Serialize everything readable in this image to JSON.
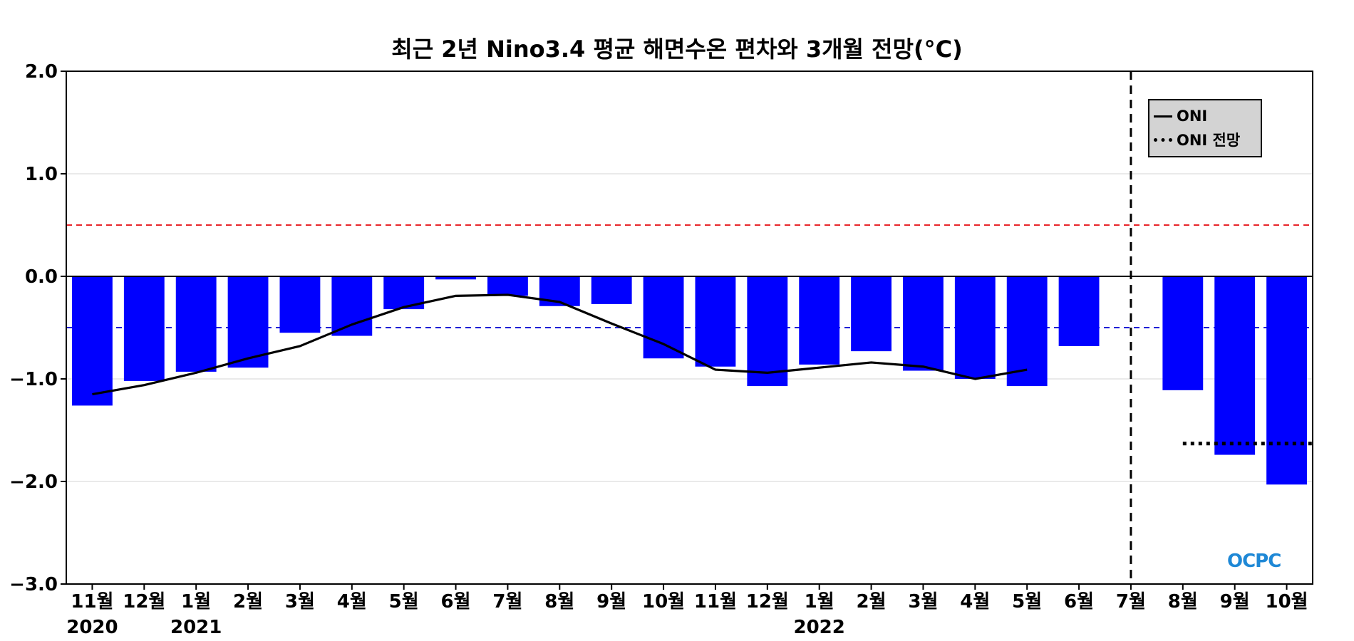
{
  "chart_data": {
    "type": "bar",
    "title": "최근 2년 Nino3.4 평균 해면수온 편차와 3개월 전망(°C)",
    "categories": [
      "11월",
      "12월",
      "1월",
      "2월",
      "3월",
      "4월",
      "5월",
      "6월",
      "7월",
      "8월",
      "9월",
      "10월",
      "11월",
      "12월",
      "1월",
      "2월",
      "3월",
      "4월",
      "5월",
      "6월",
      "7월",
      "8월",
      "9월",
      "10월"
    ],
    "year_labels": [
      {
        "index": 0,
        "label": "2020"
      },
      {
        "index": 2,
        "label": "2021"
      },
      {
        "index": 14,
        "label": "2022"
      }
    ],
    "bars": [
      -1.26,
      -1.02,
      -0.93,
      -0.89,
      -0.55,
      -0.58,
      -0.32,
      -0.03,
      -0.19,
      -0.29,
      -0.27,
      -0.8,
      -0.88,
      -1.07,
      -0.86,
      -0.73,
      -0.92,
      -1.0,
      -1.07,
      -0.68,
      null,
      -1.11,
      -1.74,
      -2.03
    ],
    "series": [
      {
        "name": "ONI",
        "style": "solid",
        "color": "#000000",
        "values": [
          -1.15,
          -1.06,
          -0.94,
          -0.8,
          -0.68,
          -0.47,
          -0.3,
          -0.19,
          -0.18,
          -0.25,
          -0.46,
          -0.66,
          -0.91,
          -0.94,
          -0.89,
          -0.84,
          -0.88,
          -1.0,
          -0.91,
          null,
          null,
          null,
          null,
          null
        ]
      },
      {
        "name": "ONI 전망",
        "style": "dotted",
        "color": "#000000",
        "values": [
          null,
          null,
          null,
          null,
          null,
          null,
          null,
          null,
          null,
          null,
          null,
          null,
          null,
          null,
          null,
          null,
          null,
          null,
          null,
          null,
          null,
          -1.63,
          -1.63,
          -1.63
        ]
      }
    ],
    "reference_lines": [
      {
        "value": 0.5,
        "color": "#e8242a",
        "style": "dashed"
      },
      {
        "value": -0.5,
        "color": "#1f1fd6",
        "style": "dashed"
      },
      {
        "value": 0.0,
        "color": "#000000",
        "style": "solid"
      }
    ],
    "forecast_divider_index": 20,
    "ylim": [
      -3.0,
      2.0
    ],
    "yticks": [
      2.0,
      1.0,
      0.0,
      -1.0,
      -2.0,
      -3.0
    ],
    "ytick_labels": [
      "2.0",
      "1.0",
      "0.0",
      "−1.0",
      "−2.0",
      "−3.0"
    ],
    "xlabel": "",
    "ylabel": "",
    "grid": true,
    "legend_position": "top-right",
    "colors": {
      "bar": "#0000ff",
      "grid": "#dddddd",
      "legend_bg": "#d3d3d3"
    }
  },
  "logo_text": "OCPC"
}
